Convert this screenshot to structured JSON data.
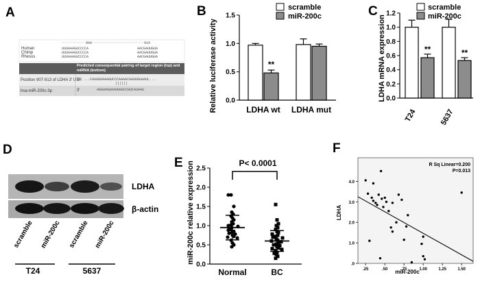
{
  "panels": {
    "A": {
      "label": "A",
      "species": [
        "Human",
        "Chimp",
        "Rhesus"
      ],
      "position_numbers": [
        "900",
        "910"
      ],
      "seq_rows": [
        "UUUAAAGUCCCCA",
        "UUUAAAGUCCCCA",
        "UUUAAAGUCCCCA"
      ],
      "seq_right": [
        "AACGAUUGUA",
        "AACGAUUGUA",
        "AACGAUUGUA"
      ],
      "table_header": "Predicted consequential pairing of target region (top) and miRNA (bottom)",
      "row1_label": "Position 907-913 of LDHA 3' UTR",
      "row1_prime": "5'",
      "row1_seq": "...CAUUGUAAAGUCCCAAAACGAUUGUAAUL...",
      "row1_bars": "||||||",
      "row2_label": "hsa-miR-200c-3p",
      "row2_prime": "3'",
      "row2_seq": "AGGUAGUAAUGGGCCGUCAUAAU"
    },
    "B": {
      "label": "B",
      "legend": [
        "scramble",
        "miR-200c"
      ],
      "ylabel": "Relative luciferase activity",
      "yticks": [
        "0.0",
        "0.5",
        "1.0",
        "1.5"
      ],
      "sig": "**"
    },
    "C": {
      "label": "C",
      "legend": [
        "scramble",
        "miR-200c"
      ],
      "ylabel": "LDHA mRNA expression",
      "yticks": [
        "0.0",
        "0.2",
        "0.4",
        "0.6",
        "0.8",
        "1.0",
        "1.2"
      ],
      "sig": "**"
    },
    "D": {
      "label": "D",
      "bands": [
        "LDHA",
        "β-actin"
      ],
      "lanes": [
        "scramble",
        "miR-200c",
        "scramble",
        "miR-200c"
      ],
      "groups": [
        "T24",
        "5637"
      ]
    },
    "E": {
      "label": "E",
      "ylabel": "miR-200c relative expression",
      "pvalue": "P< 0.0001",
      "yticks": [
        "0.0",
        "0.5",
        "1.0",
        "1.5",
        "2.0",
        "2.5"
      ]
    },
    "F": {
      "label": "F",
      "ylabel": "LDHA",
      "xlabel": "miR-200c",
      "rsq": "R Sq Linear=0.200",
      "p": "P=0.013",
      "yticks": [
        ".0",
        "1.0",
        "2.0",
        "3.0",
        "4.0",
        "5.0"
      ],
      "xticks": [
        ".25",
        ".50",
        ".75",
        "1.00",
        "1.25",
        "1.50"
      ]
    }
  },
  "chart_data": [
    {
      "id": "B",
      "type": "bar",
      "title": "",
      "xlabel": "",
      "ylabel": "Relative luciferase activity",
      "categories": [
        "LDHA wt",
        "LDHA mut"
      ],
      "ylim": [
        0,
        1.5
      ],
      "series": [
        {
          "name": "scramble",
          "values": [
            0.97,
            0.98
          ],
          "errors": [
            0.03,
            0.1
          ]
        },
        {
          "name": "miR-200c",
          "values": [
            0.48,
            0.95
          ],
          "errors": [
            0.05,
            0.04
          ]
        }
      ],
      "annotations": [
        "**"
      ]
    },
    {
      "id": "C",
      "type": "bar",
      "title": "",
      "xlabel": "",
      "ylabel": "LDHA mRNA expression",
      "categories": [
        "T24",
        "5637"
      ],
      "ylim": [
        0,
        1.2
      ],
      "series": [
        {
          "name": "scramble",
          "values": [
            1.0,
            1.0
          ],
          "errors": [
            0.1,
            0.11
          ]
        },
        {
          "name": "miR-200c",
          "values": [
            0.57,
            0.53
          ],
          "errors": [
            0.05,
            0.04
          ]
        }
      ],
      "annotations": [
        "**",
        "**"
      ]
    },
    {
      "id": "E",
      "type": "scatter",
      "title": "",
      "xlabel": "",
      "ylabel": "miR-200c relative expression",
      "categories": [
        "Normal",
        "BC"
      ],
      "ylim": [
        0,
        2.5
      ],
      "groups": [
        {
          "name": "Normal",
          "mean": 0.95,
          "sd": 0.32,
          "values": [
            1.8,
            1.8,
            1.5,
            1.35,
            1.3,
            1.25,
            1.2,
            1.15,
            1.1,
            1.05,
            1.02,
            1.0,
            0.98,
            0.95,
            0.93,
            0.9,
            0.88,
            0.85,
            0.82,
            0.8,
            0.78,
            0.75,
            0.72,
            0.7,
            0.68,
            0.62,
            0.55,
            0.5,
            0.45
          ]
        },
        {
          "name": "BC",
          "mean": 0.6,
          "sd": 0.27,
          "values": [
            1.55,
            1.15,
            1.05,
            1.0,
            0.95,
            0.9,
            0.85,
            0.82,
            0.78,
            0.75,
            0.72,
            0.7,
            0.68,
            0.65,
            0.62,
            0.6,
            0.58,
            0.55,
            0.52,
            0.5,
            0.48,
            0.45,
            0.42,
            0.4,
            0.38,
            0.35,
            0.3,
            0.28,
            0.25,
            0.2,
            0.15
          ]
        }
      ],
      "annotations": [
        "P< 0.0001"
      ]
    },
    {
      "id": "F",
      "type": "scatter",
      "title": "",
      "xlabel": "miR-200c",
      "ylabel": "LDHA",
      "xlim": [
        0.15,
        1.65
      ],
      "ylim": [
        0,
        5.0
      ],
      "points": [
        [
          0.25,
          4.05
        ],
        [
          0.28,
          3.4
        ],
        [
          0.3,
          1.1
        ],
        [
          0.33,
          3.2
        ],
        [
          0.35,
          3.9
        ],
        [
          0.35,
          3.05
        ],
        [
          0.38,
          2.95
        ],
        [
          0.4,
          2.85
        ],
        [
          0.42,
          3.35
        ],
        [
          0.44,
          0.25
        ],
        [
          0.45,
          4.5
        ],
        [
          0.46,
          3.15
        ],
        [
          0.48,
          2.75
        ],
        [
          0.5,
          3.2
        ],
        [
          0.52,
          3.0
        ],
        [
          0.55,
          2.55
        ],
        [
          0.58,
          1.75
        ],
        [
          0.6,
          1.55
        ],
        [
          0.6,
          2.95
        ],
        [
          0.65,
          2.0
        ],
        [
          0.68,
          3.35
        ],
        [
          0.72,
          3.1
        ],
        [
          0.75,
          1.15
        ],
        [
          0.78,
          1.8
        ],
        [
          0.8,
          2.35
        ],
        [
          0.85,
          0.05
        ],
        [
          0.98,
          0.95
        ],
        [
          1.0,
          0.35
        ],
        [
          1.0,
          1.3
        ],
        [
          1.02,
          0.2
        ],
        [
          1.5,
          3.45
        ]
      ],
      "regression": {
        "x": [
          0.15,
          1.65
        ],
        "y": [
          3.25,
          0.1
        ]
      },
      "annotations": [
        "R Sq Linear=0.200",
        "P=0.013"
      ]
    }
  ]
}
